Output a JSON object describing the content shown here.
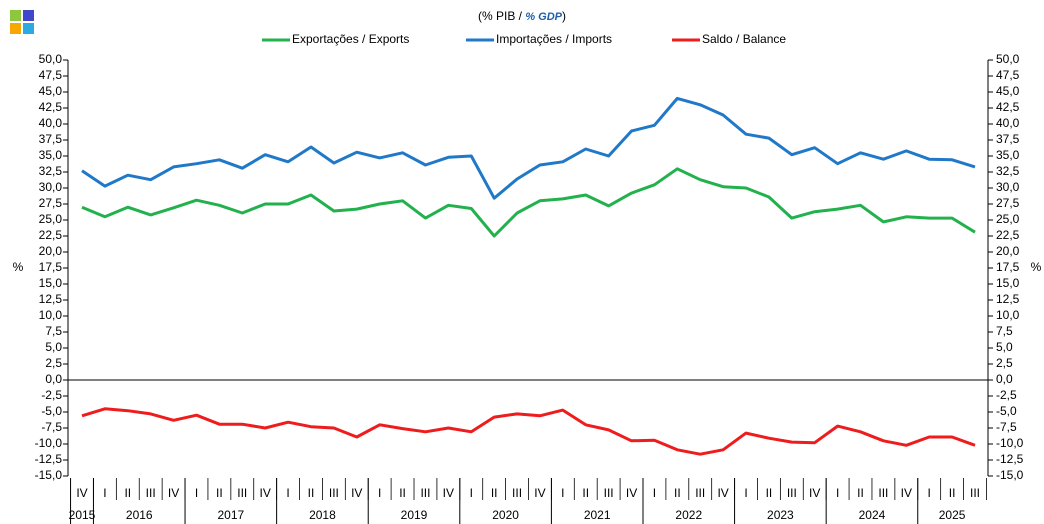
{
  "chart_data": {
    "type": "line",
    "title_parts": [
      "(% PIB / ",
      "% GDP",
      ")"
    ],
    "y_label": "%",
    "y2_label": "%",
    "categories": [
      "IV",
      "I",
      "II",
      "III",
      "IV",
      "I",
      "II",
      "III",
      "IV",
      "I",
      "II",
      "III",
      "IV",
      "I",
      "II",
      "III",
      "IV",
      "I",
      "II",
      "III",
      "IV",
      "I",
      "II",
      "III",
      "IV",
      "I",
      "II",
      "III",
      "IV",
      "I",
      "II",
      "III",
      "IV",
      "I",
      "II",
      "III",
      "IV",
      "I",
      "II",
      "III"
    ],
    "years": [
      "2015",
      "2016",
      "2017",
      "2018",
      "2019",
      "2020",
      "2021",
      "2022",
      "2023",
      "2024",
      "2025"
    ],
    "series": [
      {
        "name": "Exportações / Exports",
        "color": "#22b14c",
        "values": [
          27.0,
          25.5,
          27.0,
          25.8,
          26.9,
          28.1,
          27.3,
          26.1,
          27.5,
          27.5,
          28.9,
          26.4,
          26.7,
          27.5,
          28.0,
          25.3,
          27.3,
          26.8,
          22.5,
          26.1,
          28.0,
          28.3,
          28.9,
          27.2,
          29.2,
          30.5,
          33.0,
          31.3,
          30.2,
          30.0,
          28.6,
          25.3,
          26.3,
          26.7,
          27.3,
          24.7,
          25.5,
          25.3,
          25.3,
          23.1
        ]
      },
      {
        "name": "Importações / Imports",
        "color": "#1f78c8",
        "values": [
          32.7,
          30.3,
          32.0,
          31.3,
          33.3,
          33.8,
          34.4,
          33.1,
          35.2,
          34.1,
          36.4,
          33.9,
          35.6,
          34.7,
          35.5,
          33.6,
          34.8,
          35.0,
          28.4,
          31.4,
          33.6,
          34.1,
          36.1,
          35.0,
          38.9,
          39.8,
          44.0,
          43.0,
          41.4,
          38.4,
          37.8,
          35.2,
          36.3,
          33.8,
          35.5,
          34.5,
          35.8,
          34.5,
          34.4,
          33.3
        ]
      },
      {
        "name": "Saldo / Balance",
        "color": "#ee1c1c",
        "values": [
          -5.6,
          -4.5,
          -4.8,
          -5.3,
          -6.3,
          -5.5,
          -6.9,
          -6.9,
          -7.5,
          -6.6,
          -7.3,
          -7.5,
          -8.9,
          -7.0,
          -7.6,
          -8.1,
          -7.5,
          -8.1,
          -5.8,
          -5.3,
          -5.6,
          -4.7,
          -7.0,
          -7.8,
          -9.5,
          -9.4,
          -10.9,
          -11.6,
          -10.9,
          -8.3,
          -9.1,
          -9.7,
          -9.8,
          -7.2,
          -8.1,
          -9.5,
          -10.2,
          -8.9,
          -8.9,
          -10.2
        ]
      }
    ],
    "ylim": [
      -15,
      50
    ],
    "yticks": [
      {
        "value": 50,
        "label": "50,0"
      },
      {
        "value": 47.5,
        "label": "47,5"
      },
      {
        "value": 45,
        "label": "45,0"
      },
      {
        "value": 42.5,
        "label": "42,5"
      },
      {
        "value": 40,
        "label": "40,0"
      },
      {
        "value": 37.5,
        "label": "37,5"
      },
      {
        "value": 35,
        "label": "35,0"
      },
      {
        "value": 32.5,
        "label": "32,5"
      },
      {
        "value": 30,
        "label": "30,0"
      },
      {
        "value": 27.5,
        "label": "27,5"
      },
      {
        "value": 25,
        "label": "25,0"
      },
      {
        "value": 22.5,
        "label": "22,5"
      },
      {
        "value": 20,
        "label": "20,0"
      },
      {
        "value": 17.5,
        "label": "17,5"
      },
      {
        "value": 15,
        "label": "15,0"
      },
      {
        "value": 12.5,
        "label": "12,5"
      },
      {
        "value": 10,
        "label": "10,0"
      },
      {
        "value": 7.5,
        "label": "7,5"
      },
      {
        "value": 5,
        "label": "5,0"
      },
      {
        "value": 2.5,
        "label": "2,5"
      },
      {
        "value": 0,
        "label": "0,0"
      },
      {
        "value": -2.5,
        "label": "-2,5"
      },
      {
        "value": -5,
        "label": "-5,0"
      },
      {
        "value": -7.5,
        "label": "-7,5"
      },
      {
        "value": -10,
        "label": "-10,0"
      },
      {
        "value": -12.5,
        "label": "-12,5"
      },
      {
        "value": -15,
        "label": "-15,0"
      }
    ],
    "grid": false
  }
}
